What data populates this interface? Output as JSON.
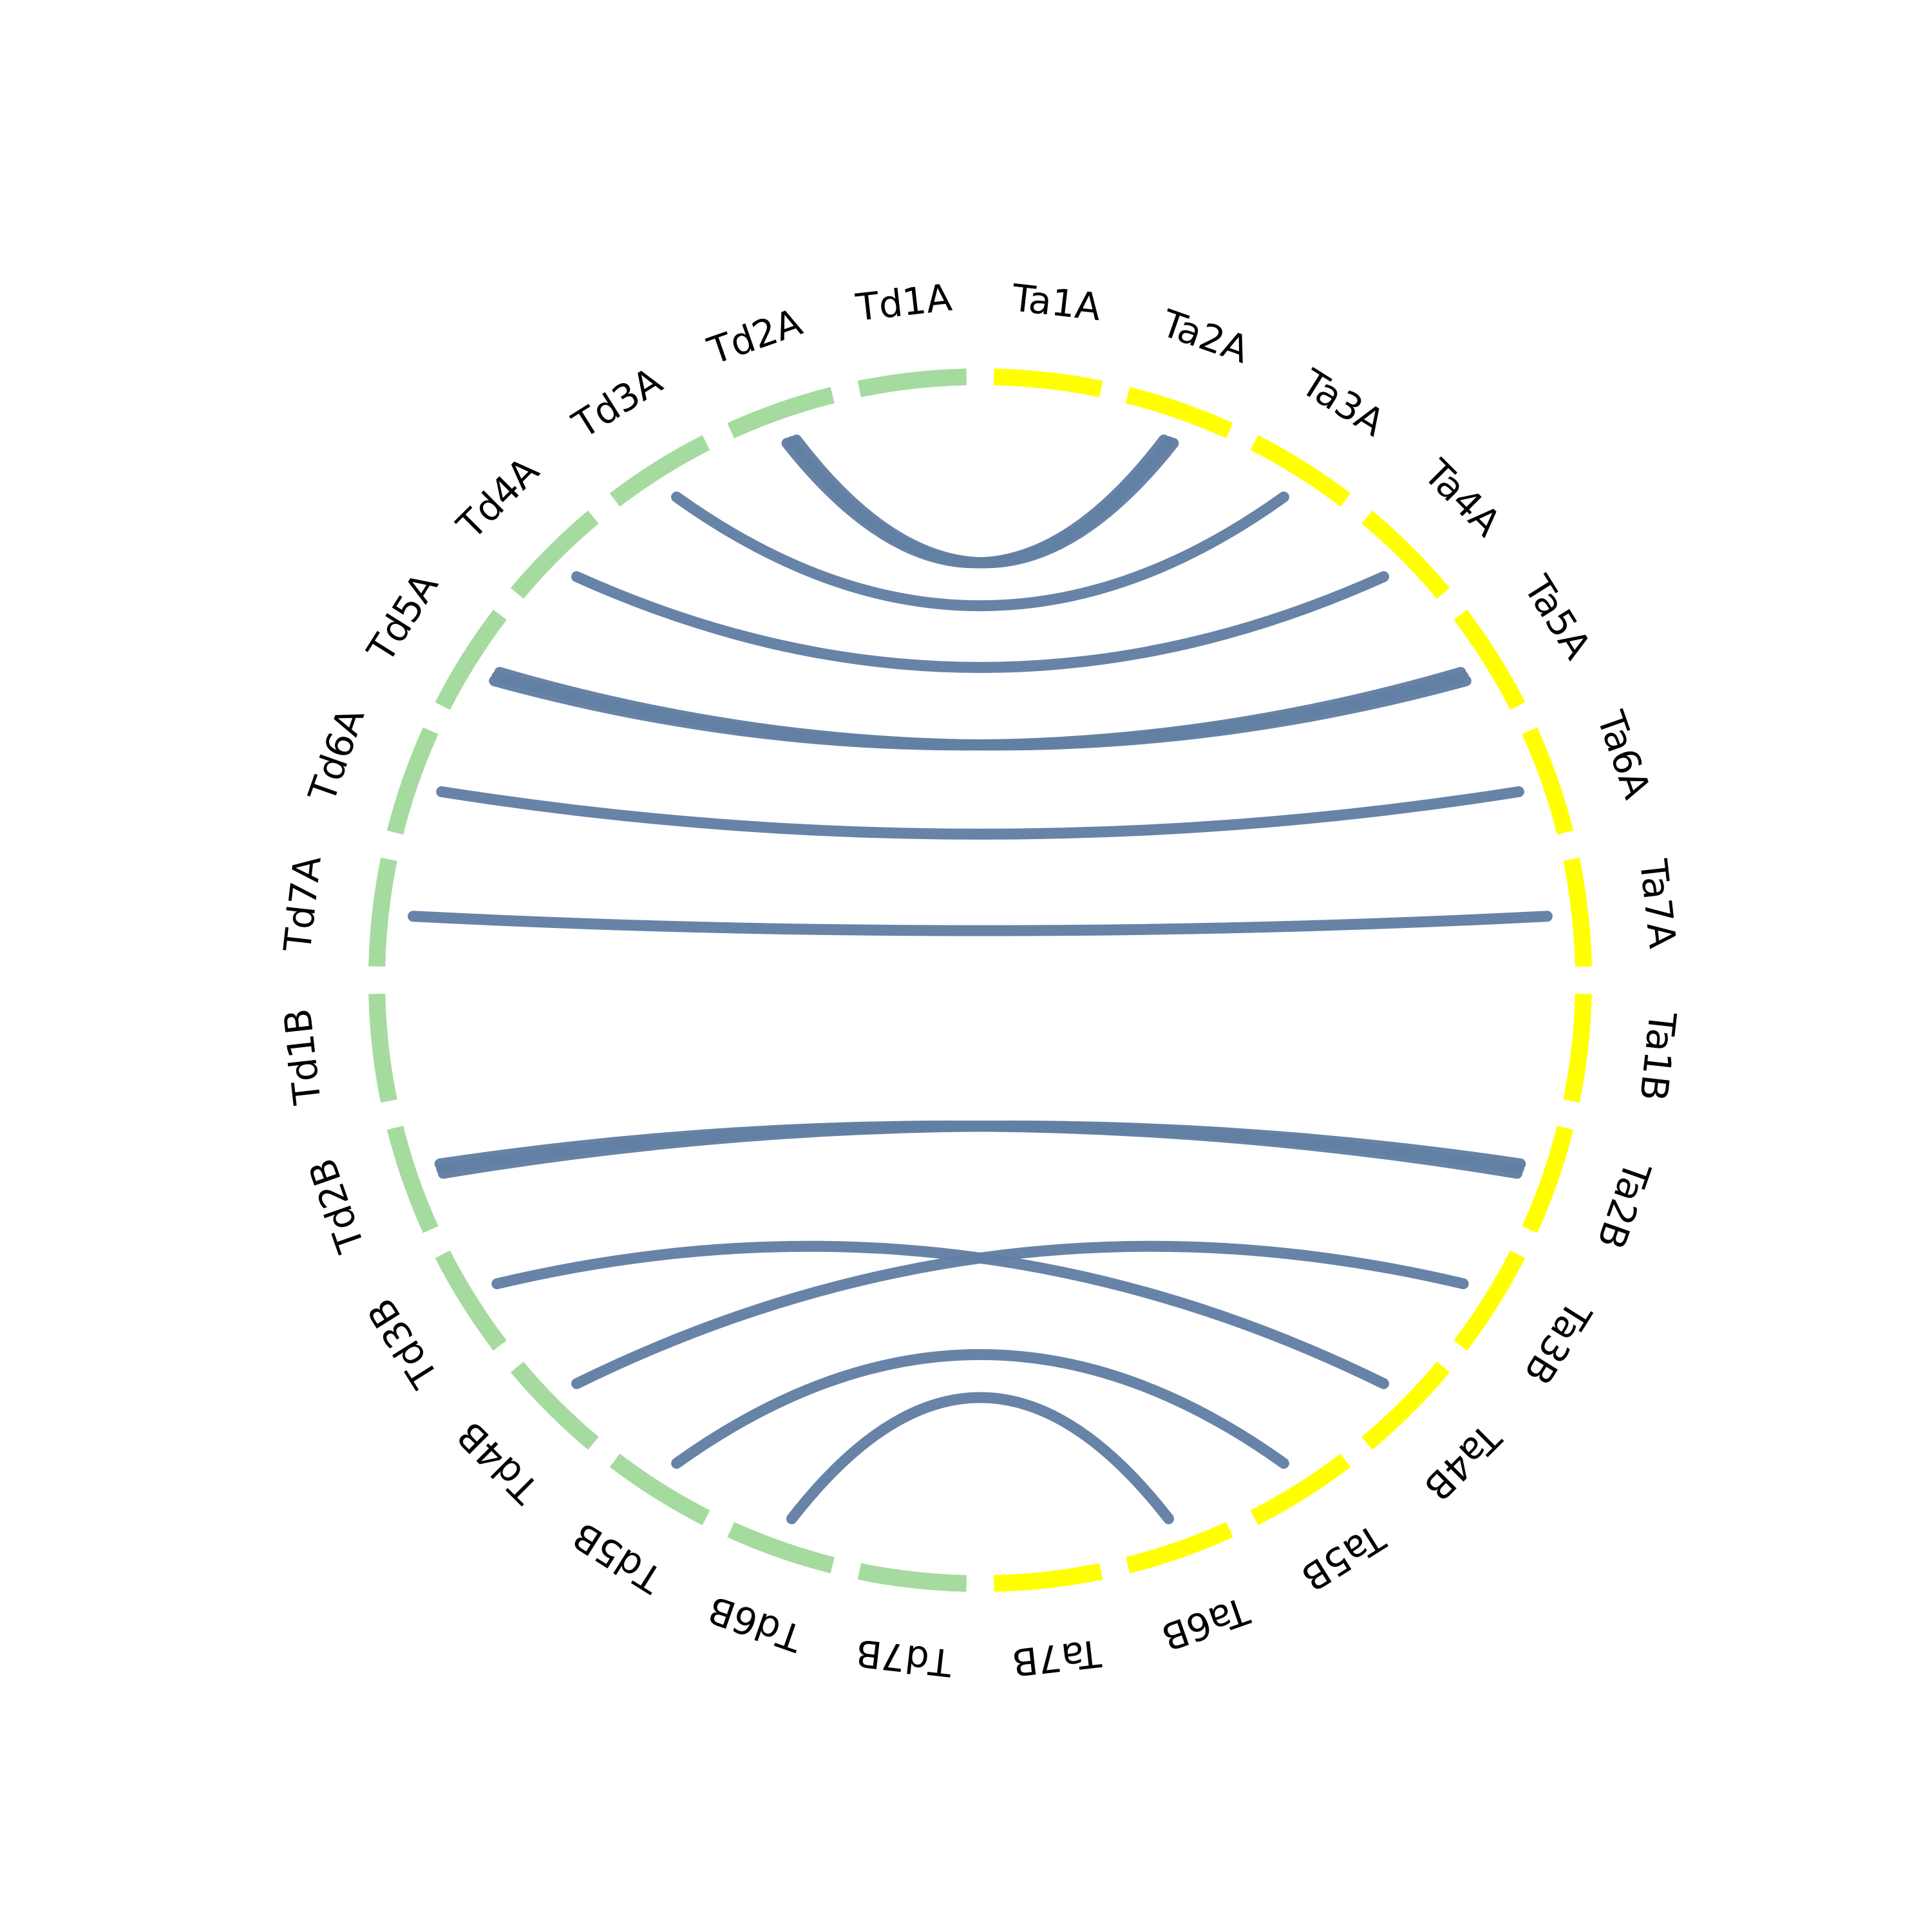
{
  "colors": {
    "Td": "#a5db9f",
    "Ta": "#ffff00",
    "link": "#627fa4",
    "label": "#000000"
  },
  "chromosomes": [
    {
      "name": "Td7B",
      "group": "Td"
    },
    {
      "name": "Td6B",
      "group": "Td"
    },
    {
      "name": "Td5B",
      "group": "Td"
    },
    {
      "name": "Td4B",
      "group": "Td"
    },
    {
      "name": "Td3B",
      "group": "Td"
    },
    {
      "name": "Td2B",
      "group": "Td"
    },
    {
      "name": "Td1B",
      "group": "Td"
    },
    {
      "name": "Td7A",
      "group": "Td"
    },
    {
      "name": "Td6A",
      "group": "Td"
    },
    {
      "name": "Td5A",
      "group": "Td"
    },
    {
      "name": "Td4A",
      "group": "Td"
    },
    {
      "name": "Td3A",
      "group": "Td"
    },
    {
      "name": "Td2A",
      "group": "Td"
    },
    {
      "name": "Td1A",
      "group": "Td"
    },
    {
      "name": "Ta1A",
      "group": "Ta"
    },
    {
      "name": "Ta2A",
      "group": "Ta"
    },
    {
      "name": "Ta3A",
      "group": "Ta"
    },
    {
      "name": "Ta4A",
      "group": "Ta"
    },
    {
      "name": "Ta5A",
      "group": "Ta"
    },
    {
      "name": "Ta6A",
      "group": "Ta"
    },
    {
      "name": "Ta7A",
      "group": "Ta"
    },
    {
      "name": "Ta1B",
      "group": "Ta"
    },
    {
      "name": "Ta2B",
      "group": "Ta"
    },
    {
      "name": "Ta3B",
      "group": "Ta"
    },
    {
      "name": "Ta4B",
      "group": "Ta"
    },
    {
      "name": "Ta5B",
      "group": "Ta"
    },
    {
      "name": "Ta6B",
      "group": "Ta"
    },
    {
      "name": "Ta7B",
      "group": "Ta"
    }
  ],
  "links": [
    {
      "source": "Td2A",
      "target": "Ta2A"
    },
    {
      "source": "Td2A",
      "target": "Ta2A"
    },
    {
      "source": "Td2A",
      "target": "Ta2A"
    },
    {
      "source": "Td3A",
      "target": "Ta3A"
    },
    {
      "source": "Td4A",
      "target": "Ta4A"
    },
    {
      "source": "Td5A",
      "target": "Ta5A"
    },
    {
      "source": "Td5A",
      "target": "Ta5A"
    },
    {
      "source": "Td5A",
      "target": "Ta5A"
    },
    {
      "source": "Td6A",
      "target": "Ta6A"
    },
    {
      "source": "Td7A",
      "target": "Ta7A"
    },
    {
      "source": "Td2B",
      "target": "Ta2B"
    },
    {
      "source": "Td2B",
      "target": "Ta2B"
    },
    {
      "source": "Td2B",
      "target": "Ta2B"
    },
    {
      "source": "Td3B",
      "target": "Ta4B"
    },
    {
      "source": "Td4B",
      "target": "Ta3B"
    },
    {
      "source": "Td5B",
      "target": "Ta5B"
    },
    {
      "source": "Td6B",
      "target": "Ta6B"
    }
  ]
}
